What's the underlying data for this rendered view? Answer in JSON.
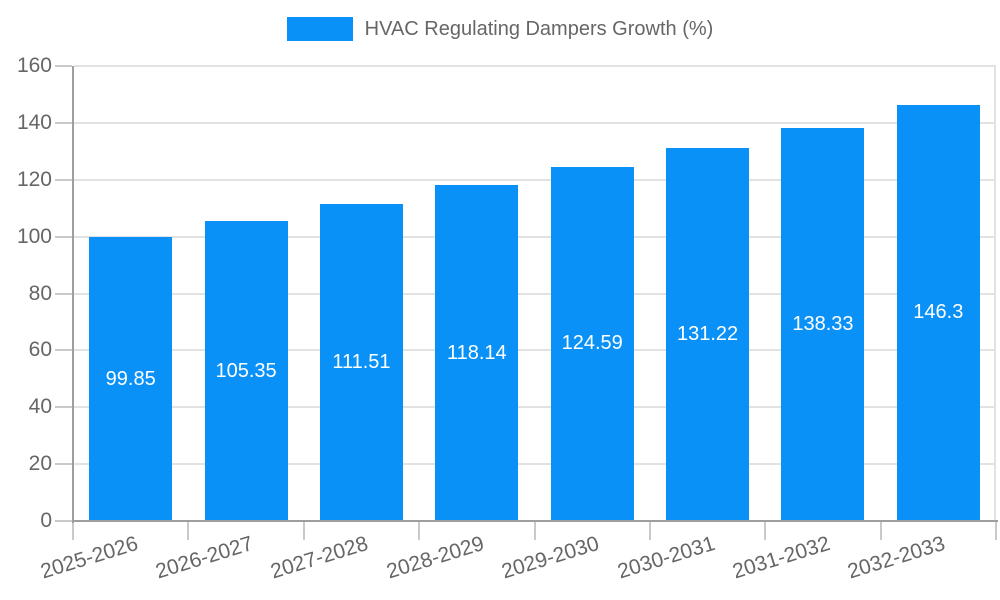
{
  "chart_data": {
    "type": "bar",
    "title": "",
    "legend": {
      "label": "HVAC Regulating Dampers Growth (%)",
      "position": "top"
    },
    "categories": [
      "2025-2026",
      "2026-2027",
      "2027-2028",
      "2028-2029",
      "2029-2030",
      "2030-2031",
      "2031-2032",
      "2032-2033"
    ],
    "values": [
      99.85,
      105.35,
      111.51,
      118.14,
      124.59,
      131.22,
      138.33,
      146.3
    ],
    "value_labels": [
      "99.85",
      "105.35",
      "111.51",
      "118.14",
      "124.59",
      "131.22",
      "138.33",
      "146.3"
    ],
    "xlabel": "",
    "ylabel": "",
    "ylim": [
      0,
      160
    ],
    "yticks": [
      0,
      20,
      40,
      60,
      80,
      100,
      120,
      140,
      160
    ],
    "grid": true,
    "colors": {
      "bar": "#0991f8",
      "axis_text": "#666666",
      "value_label": "#ffffff",
      "gridline": "#e2e2e2",
      "axis_line": "#9e9e9e",
      "tick": "#c9c9c9",
      "background": "#ffffff"
    }
  }
}
